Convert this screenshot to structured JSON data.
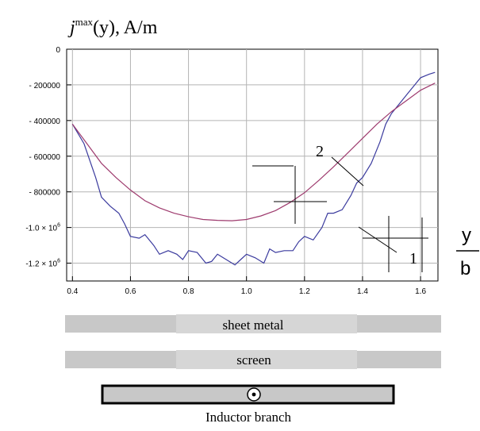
{
  "chart_data": {
    "type": "line",
    "title_base": "j",
    "title_sup": "max",
    "title_rest": "(y), A/m",
    "xlabel_num": "y",
    "xlabel_den": "b",
    "xlim": [
      0.38,
      1.66
    ],
    "ylim": [
      -1300000,
      0
    ],
    "x_ticks": [
      0.4,
      0.6,
      0.8,
      1.0,
      1.2,
      1.4,
      1.6
    ],
    "x_tick_labels": [
      "0.4",
      "0.6",
      "0.8",
      "1.0",
      "1.2",
      "1.4",
      "1.6"
    ],
    "y_ticks": [
      0,
      -200000,
      -400000,
      -600000,
      -800000,
      -1000000,
      -1200000
    ],
    "y_tick_labels": [
      "0",
      "- 200000",
      "- 400000",
      "- 600000",
      "- 800000",
      "-1.0 × 10^6",
      "-1.2 × 10^6"
    ],
    "grid": true,
    "series": [
      {
        "name": "1",
        "color": "#3b3b9e",
        "x": [
          0.4,
          0.44,
          0.48,
          0.5,
          0.53,
          0.56,
          0.58,
          0.6,
          0.63,
          0.65,
          0.68,
          0.7,
          0.73,
          0.76,
          0.78,
          0.8,
          0.83,
          0.86,
          0.88,
          0.9,
          0.93,
          0.96,
          0.98,
          1.0,
          1.03,
          1.06,
          1.08,
          1.1,
          1.13,
          1.16,
          1.18,
          1.2,
          1.23,
          1.26,
          1.28,
          1.3,
          1.33,
          1.36,
          1.38,
          1.4,
          1.43,
          1.46,
          1.48,
          1.5,
          1.53,
          1.56,
          1.58,
          1.6,
          1.63,
          1.65
        ],
        "y": [
          -420000,
          -530000,
          -720000,
          -830000,
          -880000,
          -920000,
          -980000,
          -1050000,
          -1060000,
          -1040000,
          -1100000,
          -1150000,
          -1130000,
          -1150000,
          -1180000,
          -1130000,
          -1140000,
          -1200000,
          -1190000,
          -1150000,
          -1180000,
          -1210000,
          -1180000,
          -1150000,
          -1170000,
          -1200000,
          -1120000,
          -1140000,
          -1130000,
          -1130000,
          -1080000,
          -1050000,
          -1070000,
          -1000000,
          -920000,
          -920000,
          -900000,
          -820000,
          -750000,
          -720000,
          -640000,
          -520000,
          -420000,
          -360000,
          -300000,
          -240000,
          -200000,
          -160000,
          -140000,
          -130000
        ]
      },
      {
        "name": "2",
        "color": "#9e3b6e",
        "x": [
          0.4,
          0.45,
          0.5,
          0.55,
          0.6,
          0.65,
          0.7,
          0.75,
          0.8,
          0.85,
          0.9,
          0.95,
          1.0,
          1.05,
          1.1,
          1.15,
          1.2,
          1.25,
          1.3,
          1.35,
          1.4,
          1.45,
          1.5,
          1.55,
          1.6,
          1.65
        ],
        "y": [
          -420000,
          -530000,
          -640000,
          -720000,
          -790000,
          -850000,
          -890000,
          -920000,
          -940000,
          -955000,
          -960000,
          -962000,
          -955000,
          -935000,
          -905000,
          -860000,
          -805000,
          -735000,
          -660000,
          -580000,
          -500000,
          -420000,
          -350000,
          -290000,
          -230000,
          -190000
        ]
      }
    ]
  },
  "diagram": {
    "sheet_label": "sheet metal",
    "screen_label": "screen",
    "inductor_label": "Inductor branch"
  }
}
